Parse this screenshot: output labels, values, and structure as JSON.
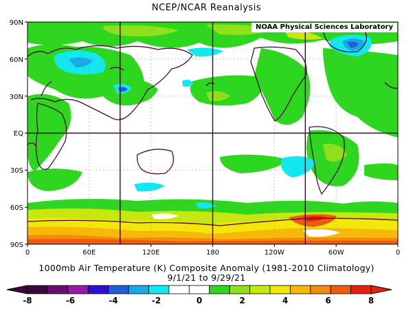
{
  "title": "NCEP/NCAR Reanalysis",
  "credit": "NOAA Physical Sciences Laboratory",
  "caption": {
    "variable": "1000mb Air Temperature (K) Composite Anomaly (1981-2010 Climatology)",
    "dates": "9/1/21  to 9/29/21"
  },
  "axes": {
    "lat_ticks": [
      "90N",
      "60N",
      "30N",
      "EQ",
      "30S",
      "60S",
      "90S"
    ],
    "lon_ticks": [
      "0",
      "60E",
      "120E",
      "180",
      "120W",
      "60W",
      "0"
    ]
  },
  "colorbar": {
    "labels": [
      "-8",
      "-6",
      "-4",
      "-2",
      "0",
      "2",
      "4",
      "6",
      "8"
    ],
    "colors": [
      "#3b0a3b",
      "#6a0f70",
      "#9a1aa8",
      "#2f0fd0",
      "#1e5fd8",
      "#19a8e8",
      "#13e8f0",
      "#ffffff",
      "#ffffff",
      "#2fd61f",
      "#8ee01b",
      "#c8e610",
      "#f2e60b",
      "#f6b908",
      "#f28a0b",
      "#ee5a0f",
      "#e8200f"
    ]
  },
  "regions": [
    {
      "name": "siberia-cold-anomaly",
      "kind": "cold"
    },
    {
      "name": "greenland-cold-anomaly",
      "kind": "cold"
    },
    {
      "name": "southern-ocean-warm-band",
      "kind": "warm"
    },
    {
      "name": "antarctic-warm-anomaly",
      "kind": "warm"
    }
  ]
}
